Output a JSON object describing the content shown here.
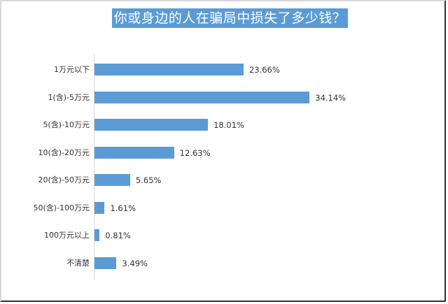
{
  "title": "你或身边的人在骗局中损失了多少钱？",
  "colors": {
    "bar": "#5b9bd5",
    "title_bg": "#5b9bd5",
    "title_text": "#ffffff",
    "text": "#333333",
    "axis": "#d9d9d9"
  },
  "chart_data": {
    "type": "bar",
    "orientation": "horizontal",
    "title": "你或身边的人在骗局中损失了多少钱？",
    "categories": [
      "1万元以下",
      "1(含)-5万元",
      "5(含)-10万元",
      "10(含)-20万元",
      "20(含)-50万元",
      "50(含)-100万元",
      "100万元以上",
      "不清楚"
    ],
    "values": [
      23.66,
      34.14,
      18.01,
      12.63,
      5.65,
      1.61,
      0.81,
      3.49
    ],
    "labels": [
      "23.66%",
      "34.14%",
      "18.01%",
      "12.63%",
      "5.65%",
      "1.61%",
      "0.81%",
      "3.49%"
    ],
    "xlabel": "",
    "ylabel": "",
    "unit": "%",
    "grid": false,
    "legend": null
  }
}
